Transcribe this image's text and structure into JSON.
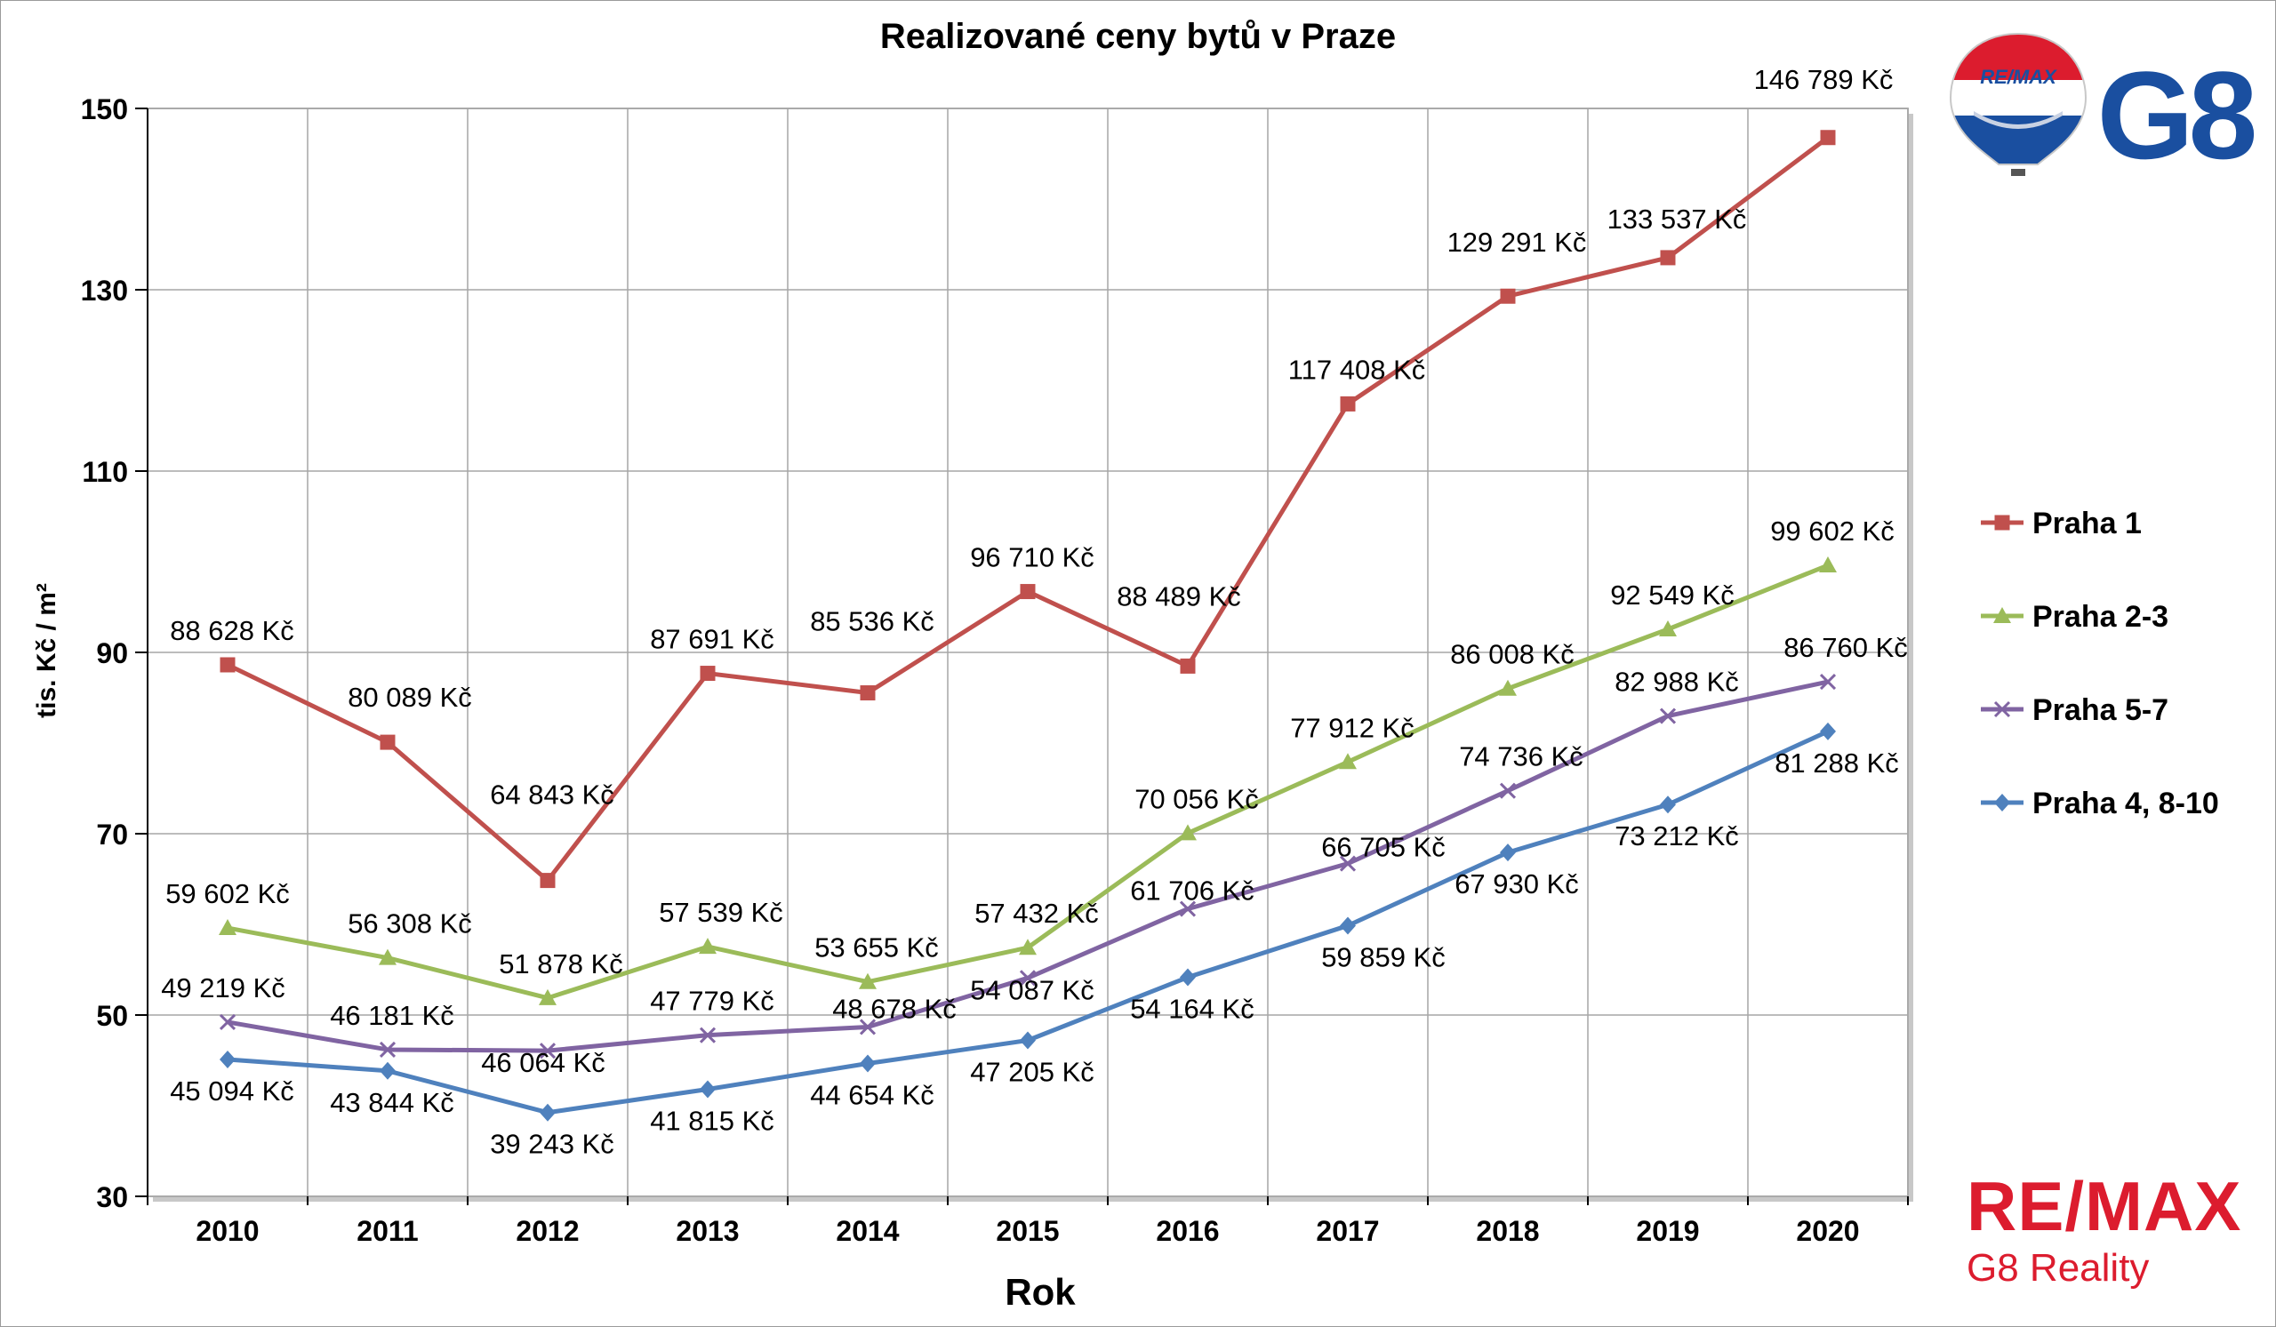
{
  "chart_data": {
    "type": "line",
    "title": "Realizované ceny bytů v Praze",
    "xlabel": "Rok",
    "ylabel": "tis. Kč / m²",
    "ylim": [
      30,
      150
    ],
    "yticks": [
      30,
      50,
      70,
      90,
      110,
      130,
      150
    ],
    "grid": true,
    "legend_position": "right",
    "categories": [
      "2010",
      "2011",
      "2012",
      "2013",
      "2014",
      "2015",
      "2016",
      "2017",
      "2018",
      "2019",
      "2020"
    ],
    "series": [
      {
        "name": "Praha 1",
        "color": "#c0504d",
        "marker": "square",
        "values": [
          88.628,
          80.089,
          64.843,
          87.691,
          85.536,
          96.71,
          88.489,
          117.408,
          129.291,
          133.537,
          146.789
        ],
        "labels": [
          "88 628 Kč",
          "80 089 Kč",
          "64 843 Kč",
          "87 691 Kč",
          "85 536 Kč",
          "96 710 Kč",
          "88 489 Kč",
          "117 408 Kč",
          "129 291 Kč",
          "133 537 Kč",
          "146 789 Kč"
        ]
      },
      {
        "name": "Praha 2-3",
        "color": "#9bbb59",
        "marker": "triangle",
        "values": [
          59.602,
          56.308,
          51.878,
          57.539,
          53.655,
          57.432,
          70.056,
          77.912,
          86.008,
          92.549,
          99.602
        ],
        "labels": [
          "59 602 Kč",
          "56 308 Kč",
          "51 878 Kč",
          "57 539 Kč",
          "53 655 Kč",
          "57 432 Kč",
          "70 056 Kč",
          "77 912 Kč",
          "86 008 Kč",
          "92 549 Kč",
          "99 602 Kč"
        ]
      },
      {
        "name": "Praha 5-7",
        "color": "#8064a2",
        "marker": "x",
        "values": [
          49.219,
          46.181,
          46.064,
          47.779,
          48.678,
          54.087,
          61.706,
          66.705,
          74.736,
          82.988,
          86.76
        ],
        "labels": [
          "49 219 Kč",
          "46 181 Kč",
          "46 064 Kč",
          "47 779 Kč",
          "48 678 Kč",
          "54 087 Kč",
          "61 706 Kč",
          "66 705 Kč",
          "74 736 Kč",
          "82 988 Kč",
          "86 760 Kč"
        ]
      },
      {
        "name": "Praha 4, 8-10",
        "color": "#4f81bd",
        "marker": "diamond",
        "values": [
          45.094,
          43.844,
          39.243,
          41.815,
          44.654,
          47.205,
          54.164,
          59.859,
          67.93,
          73.212,
          81.288
        ],
        "labels": [
          "45 094 Kč",
          "43 844 Kč",
          "39 243 Kč",
          "41 815 Kč",
          "44 654 Kč",
          "47 205 Kč",
          "54 164 Kč",
          "59 859 Kč",
          "67 930 Kč",
          "73 212 Kč",
          "81 288 Kč"
        ]
      }
    ]
  },
  "logos": {
    "balloon_text": "RE/MAX",
    "g8_text": "G8",
    "brand_name": "RE/MAX",
    "brand_subtitle": "G8 Reality",
    "brand_color": "#dc1c2e",
    "g8_color": "#1a4fa0"
  }
}
